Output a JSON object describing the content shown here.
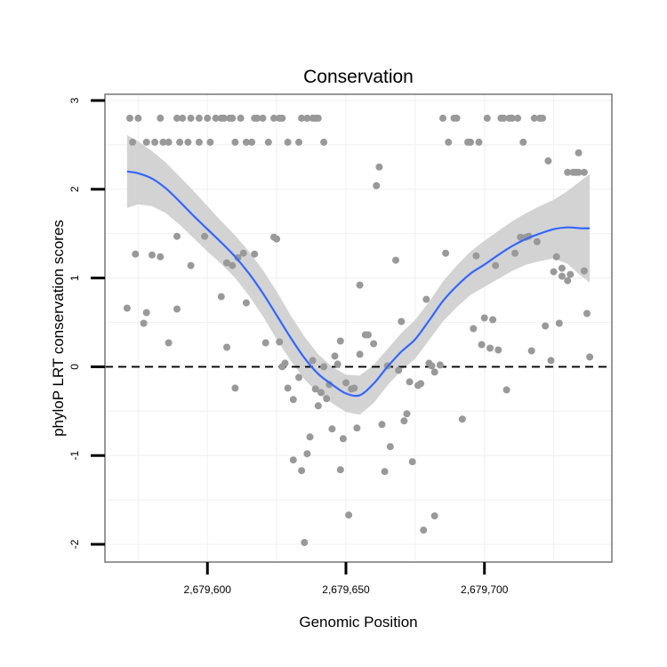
{
  "chart_data": {
    "type": "scatter",
    "title": "Conservation",
    "xlabel": "Genomic Position",
    "ylabel": "phyloP LRT conservation scores",
    "xlim": [
      2679563,
      2679746
    ],
    "ylim": [
      -2.2,
      3.07
    ],
    "x_ticks": [
      2679600,
      2679650,
      2679700
    ],
    "x_tick_labels": [
      "2,679,600",
      "2,679,650",
      "2,679,700"
    ],
    "y_ticks": [
      -2,
      -1,
      0,
      1,
      2,
      3
    ],
    "y_tick_labels": [
      "-2",
      "-1",
      "0",
      "1",
      "2",
      "3"
    ],
    "grid": true,
    "reference_line": 0,
    "colors": {
      "points": "#999999",
      "smooth": "#3366FF",
      "ribbon": "#D3D3D3",
      "panel_border": "#7F7F7F",
      "grid": "#F2F2F2"
    },
    "points": [
      [
        2679572,
        2.8
      ],
      [
        2679573,
        2.53
      ],
      [
        2679575,
        2.8
      ],
      [
        2679578,
        2.53
      ],
      [
        2679581,
        2.53
      ],
      [
        2679583,
        2.8
      ],
      [
        2679584,
        2.53
      ],
      [
        2679586,
        2.53
      ],
      [
        2679589,
        2.8
      ],
      [
        2679590,
        2.53
      ],
      [
        2679591,
        2.8
      ],
      [
        2679593,
        2.53
      ],
      [
        2679594,
        2.8
      ],
      [
        2679597,
        2.53
      ],
      [
        2679597,
        2.8
      ],
      [
        2679600,
        2.8
      ],
      [
        2679601,
        2.53
      ],
      [
        2679603,
        2.8
      ],
      [
        2679605,
        2.8
      ],
      [
        2679606,
        2.8
      ],
      [
        2679608,
        2.8
      ],
      [
        2679609,
        2.8
      ],
      [
        2679610,
        2.53
      ],
      [
        2679612,
        2.8
      ],
      [
        2679614,
        2.53
      ],
      [
        2679616,
        2.53
      ],
      [
        2679617,
        2.8
      ],
      [
        2679618,
        2.8
      ],
      [
        2679620,
        2.8
      ],
      [
        2679622,
        2.53
      ],
      [
        2679624,
        2.8
      ],
      [
        2679626,
        2.8
      ],
      [
        2679627,
        2.8
      ],
      [
        2679629,
        2.53
      ],
      [
        2679633,
        2.53
      ],
      [
        2679634,
        2.8
      ],
      [
        2679636,
        2.8
      ],
      [
        2679638,
        2.8
      ],
      [
        2679639,
        2.8
      ],
      [
        2679642,
        2.53
      ],
      [
        2679640,
        2.8
      ],
      [
        2679571,
        0.66
      ],
      [
        2679574,
        1.27
      ],
      [
        2679577,
        0.49
      ],
      [
        2679578,
        0.61
      ],
      [
        2679580,
        1.26
      ],
      [
        2679583,
        1.24
      ],
      [
        2679586,
        0.27
      ],
      [
        2679589,
        1.47
      ],
      [
        2679589,
        0.65
      ],
      [
        2679594,
        1.14
      ],
      [
        2679599,
        1.47
      ],
      [
        2679605,
        0.79
      ],
      [
        2679607,
        1.17
      ],
      [
        2679607,
        0.22
      ],
      [
        2679609,
        1.14
      ],
      [
        2679610,
        -0.24
      ],
      [
        2679611,
        1.23
      ],
      [
        2679613,
        1.28
      ],
      [
        2679614,
        0.72
      ],
      [
        2679617,
        1.27
      ],
      [
        2679621,
        0.27
      ],
      [
        2679624,
        1.46
      ],
      [
        2679625,
        1.44
      ],
      [
        2679626,
        0.28
      ],
      [
        2679627,
        0.0
      ],
      [
        2679628,
        0.04
      ],
      [
        2679629,
        -0.24
      ],
      [
        2679631,
        -1.05
      ],
      [
        2679631,
        -0.37
      ],
      [
        2679633,
        -0.12
      ],
      [
        2679634,
        -1.17
      ],
      [
        2679635,
        -1.98
      ],
      [
        2679636,
        -0.98
      ],
      [
        2679637,
        -0.79
      ],
      [
        2679638,
        0.07
      ],
      [
        2679639,
        -0.25
      ],
      [
        2679640,
        -0.44
      ],
      [
        2679641,
        -0.29
      ],
      [
        2679642,
        0.0
      ],
      [
        2679643,
        -0.36
      ],
      [
        2679644,
        -0.2
      ],
      [
        2679645,
        -0.7
      ],
      [
        2679646,
        0.12
      ],
      [
        2679647,
        0.03
      ],
      [
        2679648,
        0.29
      ],
      [
        2679648,
        -1.16
      ],
      [
        2679649,
        -0.81
      ],
      [
        2679650,
        -0.18
      ],
      [
        2679651,
        -1.67
      ],
      [
        2679652,
        -0.25
      ],
      [
        2679653,
        -0.24
      ],
      [
        2679654,
        -0.69
      ],
      [
        2679655,
        0.92
      ],
      [
        2679655,
        0.14
      ],
      [
        2679657,
        0.36
      ],
      [
        2679658,
        0.36
      ],
      [
        2679660,
        0.26
      ],
      [
        2679661,
        2.04
      ],
      [
        2679662,
        2.25
      ],
      [
        2679663,
        -0.65
      ],
      [
        2679664,
        -1.18
      ],
      [
        2679665,
        0.01
      ],
      [
        2679666,
        -0.9
      ],
      [
        2679668,
        1.2
      ],
      [
        2679669,
        -0.04
      ],
      [
        2679670,
        0.51
      ],
      [
        2679671,
        -0.61
      ],
      [
        2679672,
        -0.53
      ],
      [
        2679673,
        -0.17
      ],
      [
        2679674,
        -1.07
      ],
      [
        2679676,
        -0.21
      ],
      [
        2679677,
        -0.19
      ],
      [
        2679678,
        -1.84
      ],
      [
        2679679,
        0.76
      ],
      [
        2679680,
        0.04
      ],
      [
        2679681,
        0.01
      ],
      [
        2679682,
        -0.06
      ],
      [
        2679682,
        -1.68
      ],
      [
        2679684,
        0.02
      ],
      [
        2679686,
        1.28
      ],
      [
        2679687,
        2.53
      ],
      [
        2679685,
        2.8
      ],
      [
        2679689,
        2.8
      ],
      [
        2679690,
        2.8
      ],
      [
        2679692,
        -0.59
      ],
      [
        2679694,
        2.53
      ],
      [
        2679695,
        2.53
      ],
      [
        2679696,
        0.43
      ],
      [
        2679697,
        1.25
      ],
      [
        2679698,
        2.53
      ],
      [
        2679699,
        0.25
      ],
      [
        2679700,
        0.55
      ],
      [
        2679701,
        2.8
      ],
      [
        2679702,
        0.21
      ],
      [
        2679703,
        0.53
      ],
      [
        2679704,
        1.14
      ],
      [
        2679705,
        0.19
      ],
      [
        2679706,
        2.8
      ],
      [
        2679707,
        2.8
      ],
      [
        2679708,
        -0.26
      ],
      [
        2679709,
        2.8
      ],
      [
        2679710,
        2.8
      ],
      [
        2679711,
        1.28
      ],
      [
        2679712,
        2.8
      ],
      [
        2679713,
        1.46
      ],
      [
        2679714,
        2.53
      ],
      [
        2679715,
        1.46
      ],
      [
        2679716,
        1.47
      ],
      [
        2679717,
        0.18
      ],
      [
        2679718,
        2.8
      ],
      [
        2679719,
        1.41
      ],
      [
        2679720,
        2.8
      ],
      [
        2679721,
        2.8
      ],
      [
        2679722,
        0.46
      ],
      [
        2679723,
        2.32
      ],
      [
        2679724,
        0.07
      ],
      [
        2679725,
        1.07
      ],
      [
        2679726,
        1.24
      ],
      [
        2679727,
        0.49
      ],
      [
        2679728,
        1.11
      ],
      [
        2679728,
        1.02
      ],
      [
        2679730,
        2.19
      ],
      [
        2679730,
        0.97
      ],
      [
        2679731,
        1.04
      ],
      [
        2679732,
        2.19
      ],
      [
        2679733,
        2.19
      ],
      [
        2679734,
        2.19
      ],
      [
        2679734,
        2.41
      ],
      [
        2679736,
        2.19
      ],
      [
        2679736,
        1.08
      ],
      [
        2679737,
        0.6
      ],
      [
        2679738,
        0.11
      ]
    ],
    "smooth": [
      [
        2679571,
        2.2
      ],
      [
        2679575,
        2.18
      ],
      [
        2679580,
        2.12
      ],
      [
        2679585,
        2.01
      ],
      [
        2679590,
        1.86
      ],
      [
        2679595,
        1.7
      ],
      [
        2679600,
        1.55
      ],
      [
        2679605,
        1.4
      ],
      [
        2679610,
        1.24
      ],
      [
        2679615,
        1.05
      ],
      [
        2679620,
        0.83
      ],
      [
        2679625,
        0.58
      ],
      [
        2679630,
        0.33
      ],
      [
        2679635,
        0.1
      ],
      [
        2679640,
        -0.08
      ],
      [
        2679645,
        -0.2
      ],
      [
        2679650,
        -0.3
      ],
      [
        2679655,
        -0.32
      ],
      [
        2679660,
        -0.19
      ],
      [
        2679665,
        0.0
      ],
      [
        2679670,
        0.17
      ],
      [
        2679675,
        0.31
      ],
      [
        2679680,
        0.52
      ],
      [
        2679685,
        0.74
      ],
      [
        2679690,
        0.91
      ],
      [
        2679695,
        1.05
      ],
      [
        2679700,
        1.15
      ],
      [
        2679705,
        1.26
      ],
      [
        2679710,
        1.36
      ],
      [
        2679715,
        1.44
      ],
      [
        2679720,
        1.5
      ],
      [
        2679725,
        1.55
      ],
      [
        2679730,
        1.57
      ],
      [
        2679735,
        1.56
      ],
      [
        2679738,
        1.56
      ]
    ],
    "ribbon_upper": [
      [
        2679571,
        2.61
      ],
      [
        2679575,
        2.54
      ],
      [
        2679580,
        2.43
      ],
      [
        2679585,
        2.3
      ],
      [
        2679590,
        2.14
      ],
      [
        2679595,
        1.98
      ],
      [
        2679600,
        1.81
      ],
      [
        2679605,
        1.64
      ],
      [
        2679610,
        1.48
      ],
      [
        2679615,
        1.3
      ],
      [
        2679620,
        1.09
      ],
      [
        2679625,
        0.85
      ],
      [
        2679630,
        0.58
      ],
      [
        2679635,
        0.34
      ],
      [
        2679640,
        0.14
      ],
      [
        2679645,
        0.0
      ],
      [
        2679650,
        -0.09
      ],
      [
        2679655,
        -0.1
      ],
      [
        2679660,
        0.02
      ],
      [
        2679665,
        0.2
      ],
      [
        2679670,
        0.38
      ],
      [
        2679675,
        0.53
      ],
      [
        2679680,
        0.73
      ],
      [
        2679685,
        0.96
      ],
      [
        2679690,
        1.14
      ],
      [
        2679695,
        1.3
      ],
      [
        2679700,
        1.42
      ],
      [
        2679705,
        1.53
      ],
      [
        2679710,
        1.64
      ],
      [
        2679715,
        1.73
      ],
      [
        2679720,
        1.81
      ],
      [
        2679725,
        1.88
      ],
      [
        2679730,
        1.98
      ],
      [
        2679735,
        2.1
      ],
      [
        2679738,
        2.17
      ]
    ],
    "ribbon_lower": [
      [
        2679571,
        1.79
      ],
      [
        2679575,
        1.83
      ],
      [
        2679580,
        1.81
      ],
      [
        2679585,
        1.73
      ],
      [
        2679590,
        1.6
      ],
      [
        2679595,
        1.45
      ],
      [
        2679600,
        1.3
      ],
      [
        2679605,
        1.16
      ],
      [
        2679610,
        1.0
      ],
      [
        2679615,
        0.8
      ],
      [
        2679620,
        0.57
      ],
      [
        2679625,
        0.31
      ],
      [
        2679630,
        0.07
      ],
      [
        2679635,
        -0.14
      ],
      [
        2679640,
        -0.3
      ],
      [
        2679645,
        -0.41
      ],
      [
        2679650,
        -0.51
      ],
      [
        2679655,
        -0.54
      ],
      [
        2679660,
        -0.41
      ],
      [
        2679665,
        -0.21
      ],
      [
        2679670,
        -0.04
      ],
      [
        2679675,
        0.09
      ],
      [
        2679680,
        0.3
      ],
      [
        2679685,
        0.51
      ],
      [
        2679690,
        0.67
      ],
      [
        2679695,
        0.81
      ],
      [
        2679700,
        0.9
      ],
      [
        2679705,
        0.99
      ],
      [
        2679710,
        1.08
      ],
      [
        2679715,
        1.15
      ],
      [
        2679720,
        1.19
      ],
      [
        2679725,
        1.22
      ],
      [
        2679730,
        1.16
      ],
      [
        2679735,
        1.02
      ],
      [
        2679738,
        0.95
      ]
    ]
  }
}
